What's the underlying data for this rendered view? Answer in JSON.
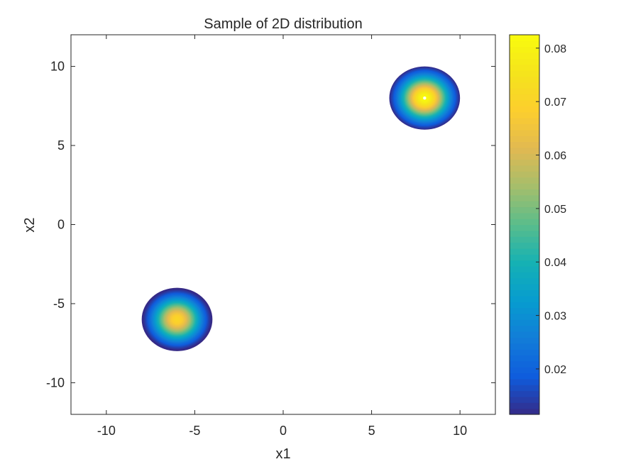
{
  "chart_data": {
    "type": "heatmap",
    "title": "Sample of 2D distribution",
    "xlabel": "x1",
    "ylabel": "x2",
    "xlim": [
      -12,
      12
    ],
    "ylim": [
      -12,
      12
    ],
    "xticks": [
      -10,
      -5,
      0,
      5,
      10
    ],
    "yticks": [
      10,
      5,
      0,
      -5,
      -10
    ],
    "grid": false,
    "colorbar": {
      "range": [
        0.0115,
        0.0825
      ],
      "ticks": [
        "0.02",
        "0.03",
        "0.04",
        "0.05",
        "0.06",
        "0.07",
        "0.08"
      ],
      "colormap": "parula"
    },
    "blobs": [
      {
        "center": [
          8,
          8
        ],
        "radius": 2.0,
        "peak": 0.0825,
        "edge": 0.0115,
        "sigma": 1.02
      },
      {
        "center": [
          -6,
          -6
        ],
        "radius": 2.0,
        "peak": 0.071,
        "edge": 0.0115,
        "sigma": 1.02
      }
    ]
  }
}
